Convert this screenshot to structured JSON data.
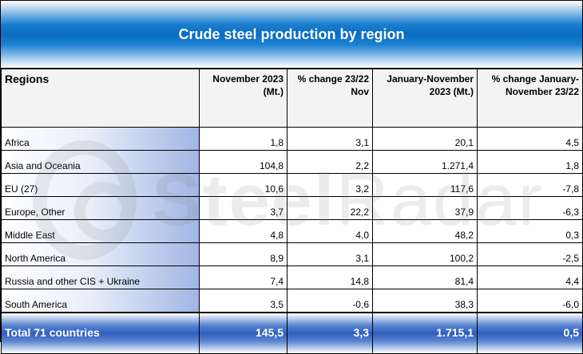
{
  "title": "Crude steel production by region",
  "headers": {
    "regions": "Regions",
    "nov_2023": "November 2023 (Mt.)",
    "pct_change_nov": "% change 23/22 Nov",
    "jan_nov_2023": "January-November 2023 (Mt.)",
    "pct_change_jan_nov": "% change January-November 23/22"
  },
  "rows": [
    {
      "region": "Africa",
      "nov": "1,8",
      "pct_nov": "3,1",
      "jan_nov": "20,1",
      "pct_jan_nov": "4,5"
    },
    {
      "region": "Asia and Oceania",
      "nov": "104,8",
      "pct_nov": "2,2",
      "jan_nov": "1.271,4",
      "pct_jan_nov": "1,8"
    },
    {
      "region": "EU (27)",
      "nov": "10,6",
      "pct_nov": "3,2",
      "jan_nov": "117,6",
      "pct_jan_nov": "-7,8"
    },
    {
      "region": "Europe, Other",
      "nov": "3,7",
      "pct_nov": "22,2",
      "jan_nov": "37,9",
      "pct_jan_nov": "-6,3"
    },
    {
      "region": "Middle East",
      "nov": "4,8",
      "pct_nov": "4,0",
      "jan_nov": "48,2",
      "pct_jan_nov": "0,3"
    },
    {
      "region": "North America",
      "nov": "8,9",
      "pct_nov": "3,1",
      "jan_nov": "100,2",
      "pct_jan_nov": "-2,5"
    },
    {
      "region": "Russia and other CIS + Ukraine",
      "nov": "7,4",
      "pct_nov": "14,8",
      "jan_nov": "81,4",
      "pct_jan_nov": "4,4"
    },
    {
      "region": "South America",
      "nov": "3,5",
      "pct_nov": "-0,6",
      "jan_nov": "38,3",
      "pct_jan_nov": "-6,0"
    }
  ],
  "total": {
    "region": "Total 71 countries",
    "nov": "145,5",
    "pct_nov": "3,3",
    "jan_nov": "1.715,1",
    "pct_jan_nov": "0,5"
  },
  "watermark": {
    "text_bold": "Steel",
    "text_light": "Radar",
    "icon": "steelradar-logo-icon"
  },
  "colors": {
    "title_blue": "#0a6cc4",
    "total_blue": "#2f5fbf",
    "region_gradient_end": "#9fb6e4"
  }
}
